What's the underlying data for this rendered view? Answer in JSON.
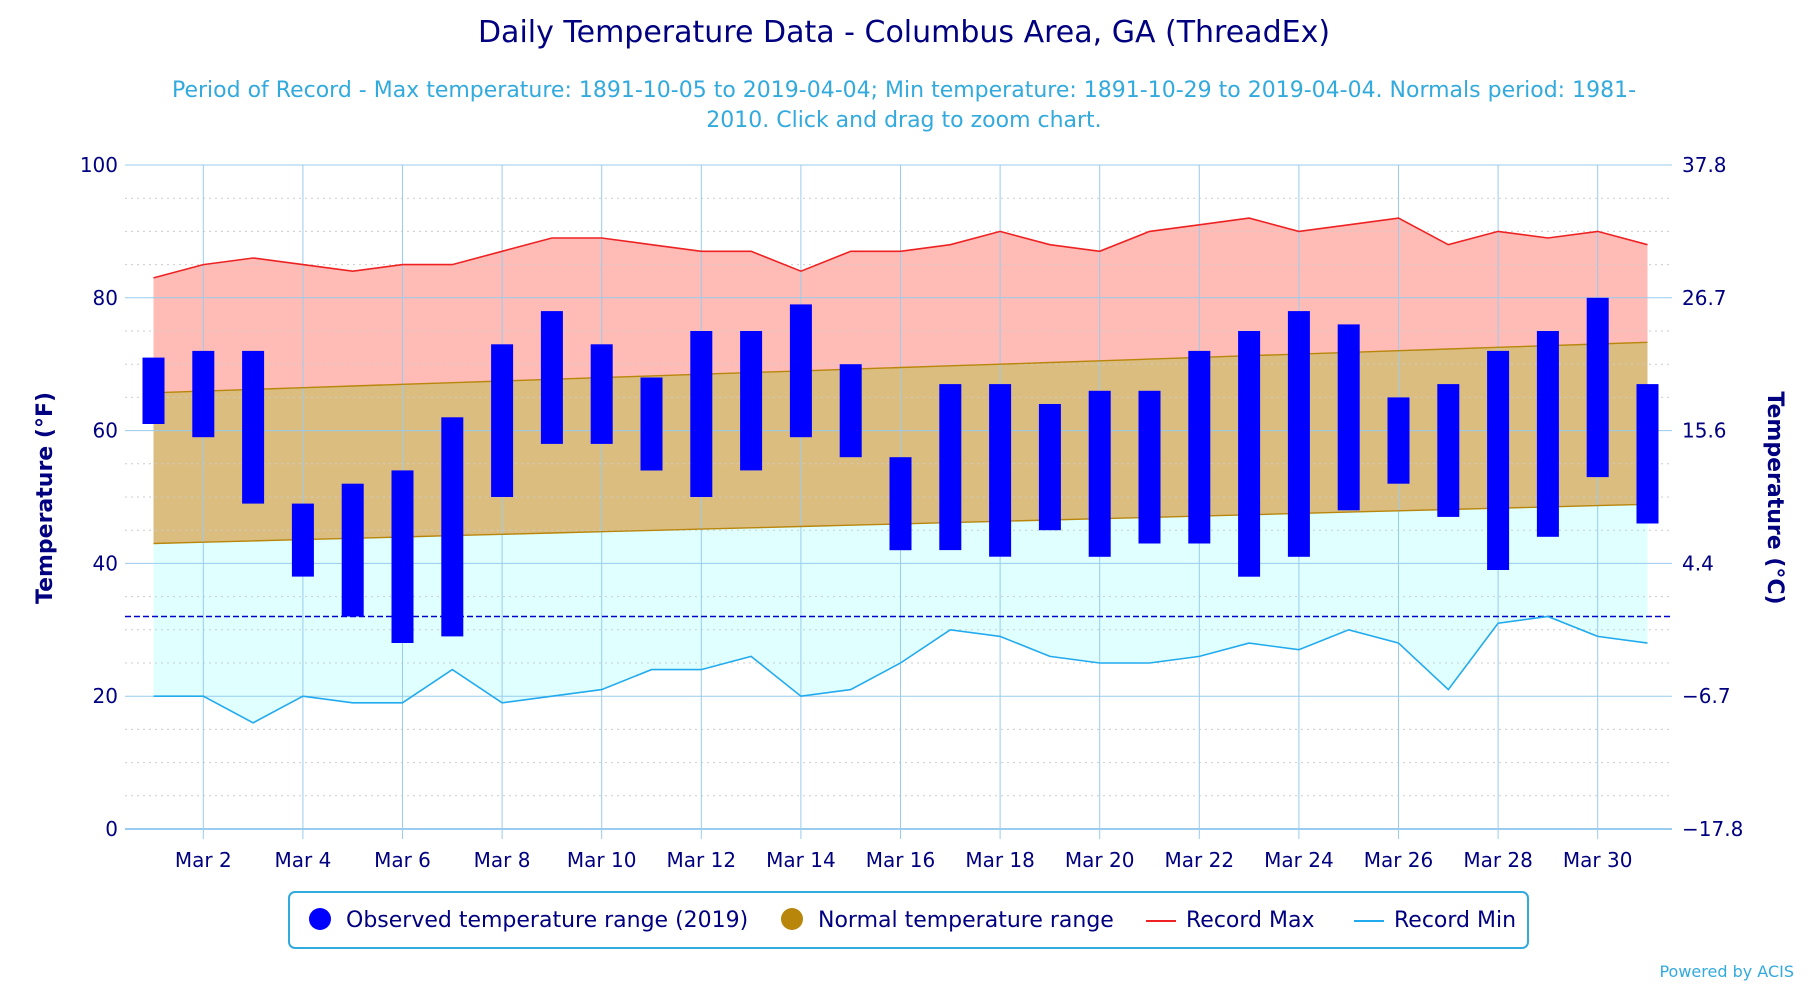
{
  "chart_data": {
    "type": "bar",
    "title": "Daily Temperature Data - Columbus Area, GA (ThreadEx)",
    "subtitle_line1": "Period of Record - Max temperature: 1891-10-05 to 2019-04-04; Min temperature: 1891-10-29 to 2019-04-04. Normals period: 1981-",
    "subtitle_line2": "2010. Click and drag to zoom chart.",
    "ylabel": "Temperature (°F)",
    "ylabel_right": "Temperature (°C)",
    "ylim": [
      0,
      100
    ],
    "yticks": [
      "0",
      "20",
      "40",
      "60",
      "80",
      "100"
    ],
    "yticks_right": [
      "−17.8",
      "−6.7",
      "4.4",
      "15.6",
      "26.7",
      "37.8"
    ],
    "xlim": [
      1,
      31
    ],
    "xtick_days": [
      2,
      4,
      6,
      8,
      10,
      12,
      14,
      16,
      18,
      20,
      22,
      24,
      26,
      28,
      30
    ],
    "xtick_labels": [
      "Mar 2",
      "Mar 4",
      "Mar 6",
      "Mar 8",
      "Mar 10",
      "Mar 12",
      "Mar 14",
      "Mar 16",
      "Mar 18",
      "Mar 20",
      "Mar 22",
      "Mar 24",
      "Mar 26",
      "Mar 28",
      "Mar 30"
    ],
    "freezing_line": 32,
    "days": [
      1,
      2,
      3,
      4,
      5,
      6,
      7,
      8,
      9,
      10,
      11,
      12,
      13,
      14,
      15,
      16,
      17,
      18,
      19,
      20,
      21,
      22,
      23,
      24,
      25,
      26,
      27,
      28,
      29,
      30,
      31
    ],
    "observed_high": [
      71,
      72,
      72,
      49,
      52,
      54,
      62,
      73,
      78,
      73,
      68,
      75,
      75,
      79,
      70,
      56,
      67,
      67,
      64,
      66,
      66,
      72,
      75,
      78,
      76,
      65,
      67,
      72,
      75,
      80,
      67
    ],
    "observed_low": [
      61,
      59,
      49,
      38,
      32,
      28,
      29,
      50,
      58,
      58,
      54,
      50,
      54,
      59,
      56,
      42,
      42,
      41,
      45,
      41,
      43,
      43,
      38,
      41,
      48,
      52,
      47,
      39,
      44,
      53,
      46
    ],
    "normal_high_start": 65.7,
    "normal_high_end": 73.3,
    "normal_low_start": 43.0,
    "normal_low_end": 48.9,
    "record_max": [
      83,
      85,
      86,
      85,
      84,
      85,
      85,
      87,
      89,
      89,
      88,
      87,
      87,
      84,
      87,
      87,
      88,
      90,
      88,
      87,
      90,
      91,
      92,
      90,
      91,
      92,
      88,
      90,
      89,
      90,
      88
    ],
    "record_min": [
      20,
      20,
      16,
      20,
      19,
      19,
      24,
      19,
      20,
      21,
      24,
      24,
      26,
      20,
      21,
      25,
      30,
      29,
      26,
      25,
      25,
      26,
      28,
      27,
      30,
      28,
      21,
      31,
      32,
      29,
      28
    ],
    "legend": [
      {
        "label": "Observed temperature range (2019)",
        "color": "#0000ff",
        "marker": "circle"
      },
      {
        "label": "Normal temperature range",
        "color": "#b8860b",
        "marker": "circle"
      },
      {
        "label": "Record Max",
        "color": "#ee2222",
        "marker": "line"
      },
      {
        "label": "Record Min",
        "color": "#22aaee",
        "marker": "line"
      }
    ],
    "colors": {
      "observed": "#0000ff",
      "normal_fill": "#dcbd80",
      "normal_line": "#b8860b",
      "record_max_line": "#ee2222",
      "record_max_fill": "#ffbbb6",
      "record_min_line": "#22aaee",
      "record_min_fill": "#e0ffff",
      "freezing": "#0000cc",
      "grid_vertical": "#99ccee",
      "grid_horizontal": "#cccccc"
    }
  },
  "credit": "Powered by ACIS"
}
